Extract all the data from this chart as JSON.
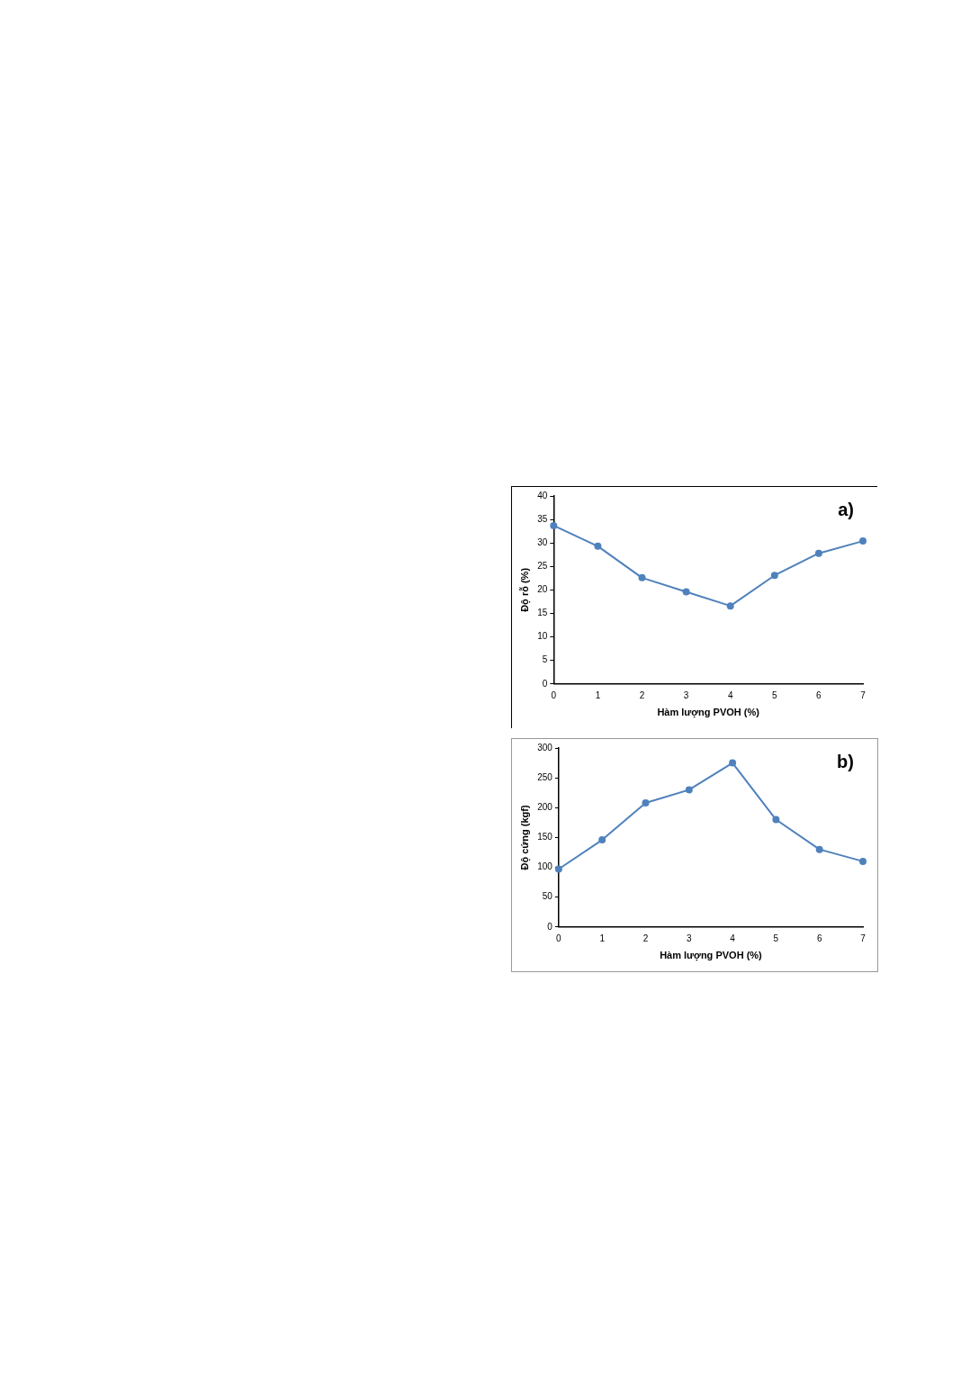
{
  "chart_data": [
    {
      "type": "line",
      "ylabel": "Độ rỗ (%)",
      "xlabel": "Hàm lượng PVOH (%)",
      "annotations": [
        "a)"
      ],
      "x": [
        0,
        1,
        2,
        3,
        4,
        5,
        6,
        7
      ],
      "series": [
        {
          "color": "#4f81bd",
          "values": [
            33.7,
            29.3,
            22.6,
            19.6,
            16.6,
            23.1,
            27.8,
            30.4
          ]
        }
      ],
      "xlim": [
        0,
        7
      ],
      "xticks": [
        0,
        1,
        2,
        3,
        4,
        5,
        6,
        7
      ],
      "ylim": [
        0,
        40
      ],
      "yticks": [
        0,
        5,
        10,
        15,
        20,
        25,
        30,
        35,
        40
      ],
      "grid": false,
      "legend": false,
      "marker": "circle",
      "line_style": "solid"
    },
    {
      "type": "line",
      "ylabel": "Độ cứng (kgf)",
      "xlabel": "Hàm lượng PVOH (%)",
      "annotations": [
        "b)"
      ],
      "x": [
        0,
        1,
        2,
        3,
        4,
        5,
        6,
        7
      ],
      "series": [
        {
          "color": "#4f81bd",
          "values": [
            97,
            146,
            208,
            230,
            275,
            180,
            130,
            110
          ]
        }
      ],
      "xlim": [
        0,
        7
      ],
      "xticks": [
        0,
        1,
        2,
        3,
        4,
        5,
        6,
        7
      ],
      "ylim": [
        0,
        300
      ],
      "yticks": [
        0,
        50,
        100,
        150,
        200,
        250,
        300
      ],
      "grid": false,
      "legend": false,
      "marker": "circle",
      "line_style": "solid"
    }
  ]
}
